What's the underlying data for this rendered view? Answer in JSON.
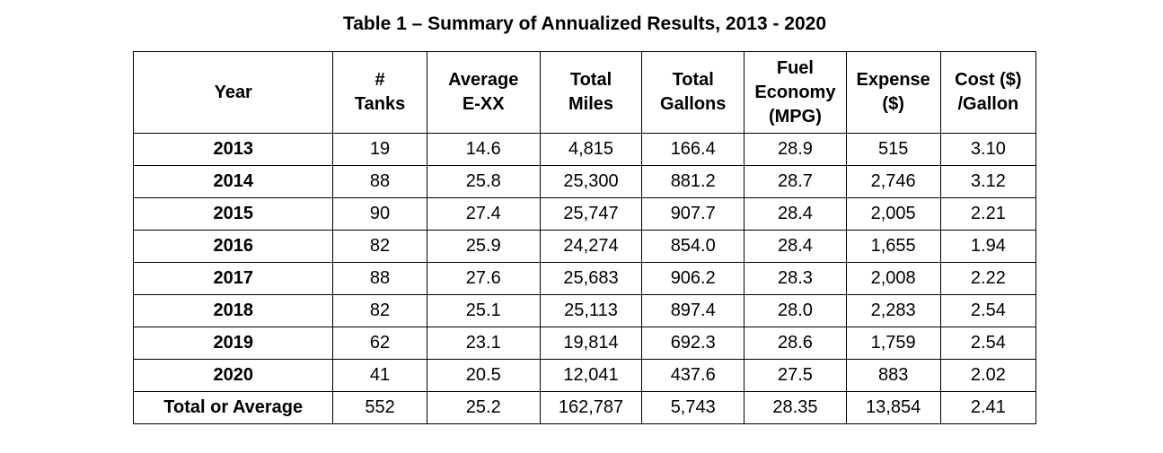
{
  "page": {
    "background_color": "#ffffff",
    "text_color": "#000000",
    "border_color": "#000000"
  },
  "title": "Table 1 – Summary of Annualized Results, 2013 - 2020",
  "table": {
    "columns": [
      {
        "id": "year",
        "label": "Year"
      },
      {
        "id": "tanks",
        "label": "#\nTanks"
      },
      {
        "id": "average_exx",
        "label": "Average\nE-XX"
      },
      {
        "id": "total_miles",
        "label": "Total\nMiles"
      },
      {
        "id": "total_gallons",
        "label": "Total\nGallons"
      },
      {
        "id": "fuel_economy",
        "label": "Fuel\nEconomy\n(MPG)"
      },
      {
        "id": "expense",
        "label": "Expense\n($)"
      },
      {
        "id": "cost_per_gallon",
        "label": "Cost ($)\n/Gallon"
      }
    ],
    "rows": [
      {
        "cells": [
          "2013",
          "19",
          "14.6",
          "4,815",
          "166.4",
          "28.9",
          "515",
          "3.10"
        ]
      },
      {
        "cells": [
          "2014",
          "88",
          "25.8",
          "25,300",
          "881.2",
          "28.7",
          "2,746",
          "3.12"
        ]
      },
      {
        "cells": [
          "2015",
          "90",
          "27.4",
          "25,747",
          "907.7",
          "28.4",
          "2,005",
          "2.21"
        ]
      },
      {
        "cells": [
          "2016",
          "82",
          "25.9",
          "24,274",
          "854.0",
          "28.4",
          "1,655",
          "1.94"
        ]
      },
      {
        "cells": [
          "2017",
          "88",
          "27.6",
          "25,683",
          "906.2",
          "28.3",
          "2,008",
          "2.22"
        ]
      },
      {
        "cells": [
          "2018",
          "82",
          "25.1",
          "25,113",
          "897.4",
          "28.0",
          "2,283",
          "2.54"
        ]
      },
      {
        "cells": [
          "2019",
          "62",
          "23.1",
          "19,814",
          "692.3",
          "28.6",
          "1,759",
          "2.54"
        ]
      },
      {
        "cells": [
          "2020",
          "41",
          "20.5",
          "12,041",
          "437.6",
          "27.5",
          "883",
          "2.02"
        ]
      },
      {
        "cells": [
          "Total or Average",
          "552",
          "25.2",
          "162,787",
          "5,743",
          "28.35",
          "13,854",
          "2.41"
        ]
      }
    ]
  }
}
